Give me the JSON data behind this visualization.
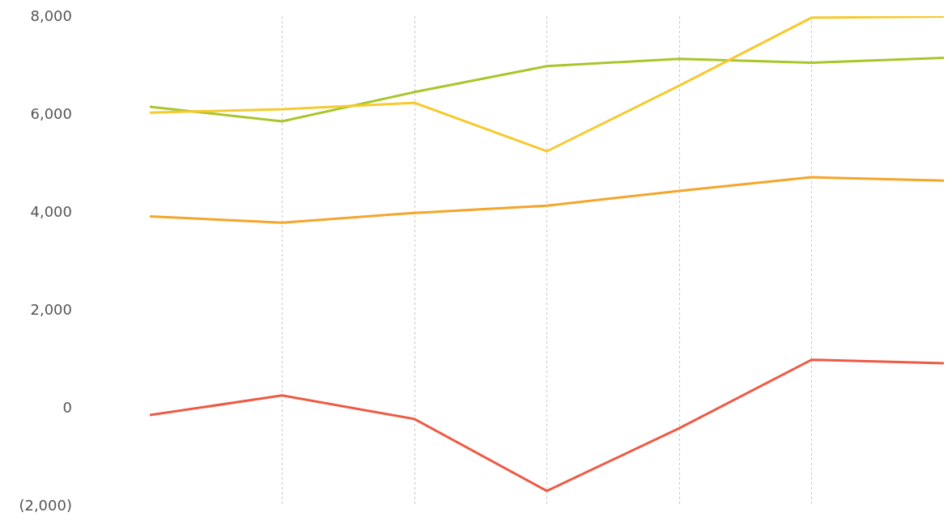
{
  "chart_data": {
    "type": "line",
    "categories": [
      null,
      null,
      null,
      null,
      null,
      null,
      null
    ],
    "series": [
      {
        "color": "#a8c62a",
        "values": [
          6150,
          5850,
          6450,
          6980,
          7130,
          7050,
          7150
        ]
      },
      {
        "color": "#f7c92e",
        "values": [
          6030,
          6100,
          6230,
          5240,
          6580,
          7970,
          7990
        ]
      },
      {
        "color": "#f5a52a",
        "values": [
          3910,
          3780,
          3980,
          4130,
          4430,
          4710,
          4640
        ]
      },
      {
        "color": "#ee5a44",
        "values": [
          -150,
          250,
          -230,
          -1700,
          -420,
          980,
          910
        ]
      }
    ],
    "ylim": [
      -2000,
      8000
    ],
    "yticks": [
      {
        "value": -2000,
        "label": "(2,000)"
      },
      {
        "value": 0,
        "label": "0"
      },
      {
        "value": 2000,
        "label": "2,000"
      },
      {
        "value": 4000,
        "label": "4,000"
      },
      {
        "value": 6000,
        "label": "6,000"
      },
      {
        "value": 8000,
        "label": "8,000"
      }
    ],
    "grid": "x",
    "marker": "none",
    "line_style": "solid"
  }
}
